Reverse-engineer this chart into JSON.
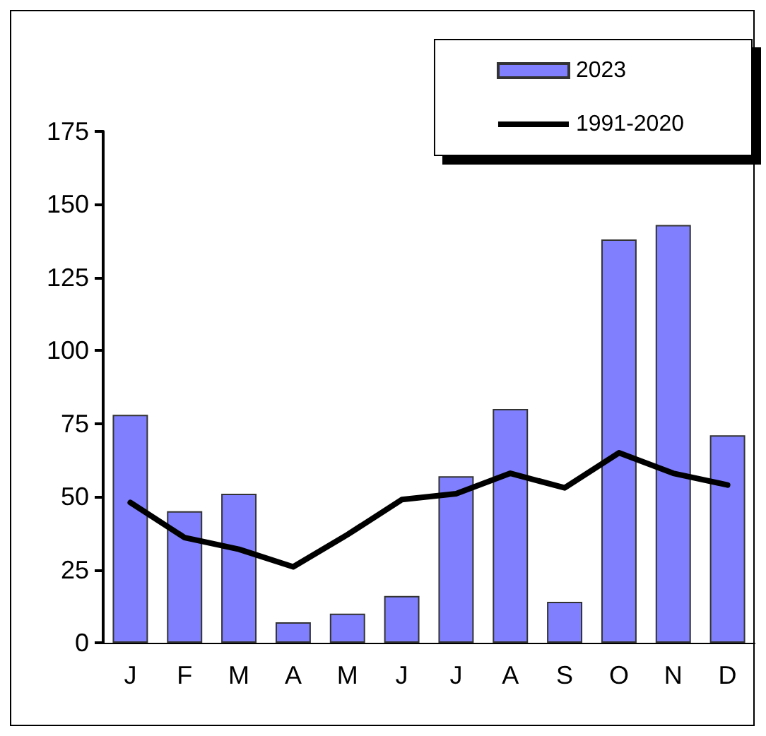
{
  "chart_data": {
    "type": "bar",
    "categories": [
      "J",
      "F",
      "M",
      "A",
      "M",
      "J",
      "J",
      "A",
      "S",
      "O",
      "N",
      "D"
    ],
    "series": [
      {
        "name": "2023",
        "color": "#8080ff",
        "values": [
          78,
          45,
          51,
          7,
          10,
          16,
          57,
          80,
          14,
          138,
          143,
          71
        ]
      },
      {
        "name": "1991-2020",
        "type": "line",
        "color": "#000000",
        "values": [
          48,
          36,
          32,
          26,
          37,
          49,
          51,
          58,
          53,
          65,
          58,
          54
        ]
      }
    ],
    "ylim": [
      0,
      175
    ],
    "yticks": [
      0,
      25,
      50,
      75,
      100,
      125,
      150,
      175
    ],
    "grid": false,
    "legend": "top right",
    "marker": "none",
    "line_style": "solid"
  }
}
